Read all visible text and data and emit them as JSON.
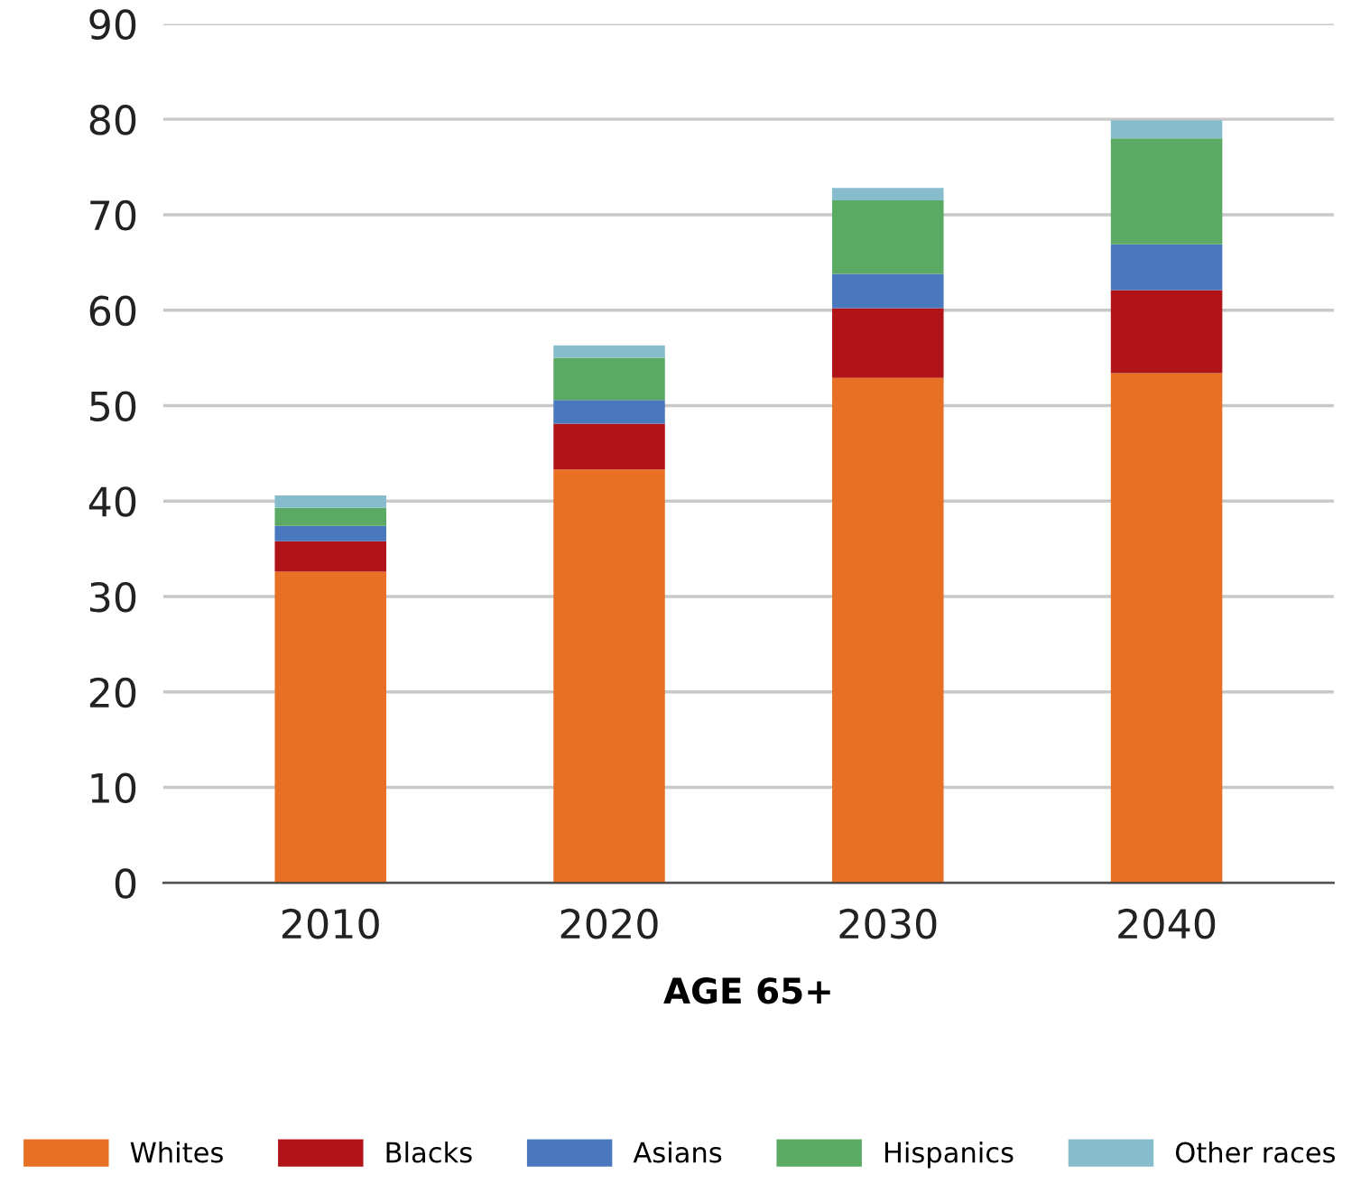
{
  "chart_data": {
    "type": "bar",
    "stacked": true,
    "xlabel": "AGE 65+",
    "categories": [
      "2010",
      "2020",
      "2030",
      "2040"
    ],
    "ylim": [
      0,
      90
    ],
    "yticks": [
      0,
      10,
      20,
      30,
      40,
      50,
      60,
      70,
      80,
      90
    ],
    "grid": "y",
    "legend": "bottom",
    "series": [
      {
        "name": "Whites",
        "color": "#e87025",
        "values": [
          32.6,
          43.3,
          52.9,
          53.4
        ]
      },
      {
        "name": "Blacks",
        "color": "#b01419",
        "values": [
          3.2,
          4.8,
          7.3,
          8.7
        ]
      },
      {
        "name": "Asians",
        "color": "#4a78bf",
        "values": [
          1.6,
          2.5,
          3.6,
          4.8
        ]
      },
      {
        "name": "Hispanics",
        "color": "#5aaa63",
        "values": [
          1.9,
          4.4,
          7.7,
          11.1
        ]
      },
      {
        "name": "Other races",
        "color": "#86bccc",
        "values": [
          1.3,
          1.3,
          1.3,
          1.9
        ]
      }
    ]
  }
}
